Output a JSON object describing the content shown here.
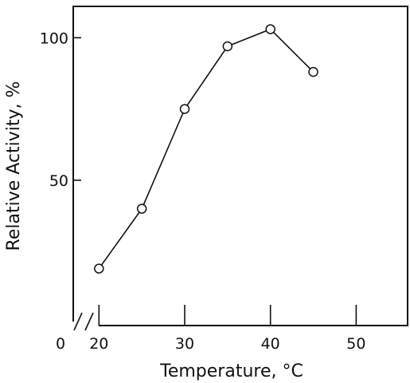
{
  "chart_data": {
    "type": "line",
    "xlabel": "Temperature, °C",
    "ylabel": "Relative Activity, %",
    "x_origin_label": "0",
    "x_axis_break": true,
    "x_ticks": [
      20,
      30,
      40,
      50
    ],
    "y_ticks": [
      50,
      100
    ],
    "xlim": [
      17,
      56
    ],
    "ylim": [
      -1,
      111
    ],
    "grid": false,
    "marker": "open-circle",
    "series": [
      {
        "x": [
          20,
          25,
          30,
          35,
          40,
          45
        ],
        "y": [
          19,
          40,
          75,
          97,
          103,
          88
        ]
      }
    ]
  }
}
